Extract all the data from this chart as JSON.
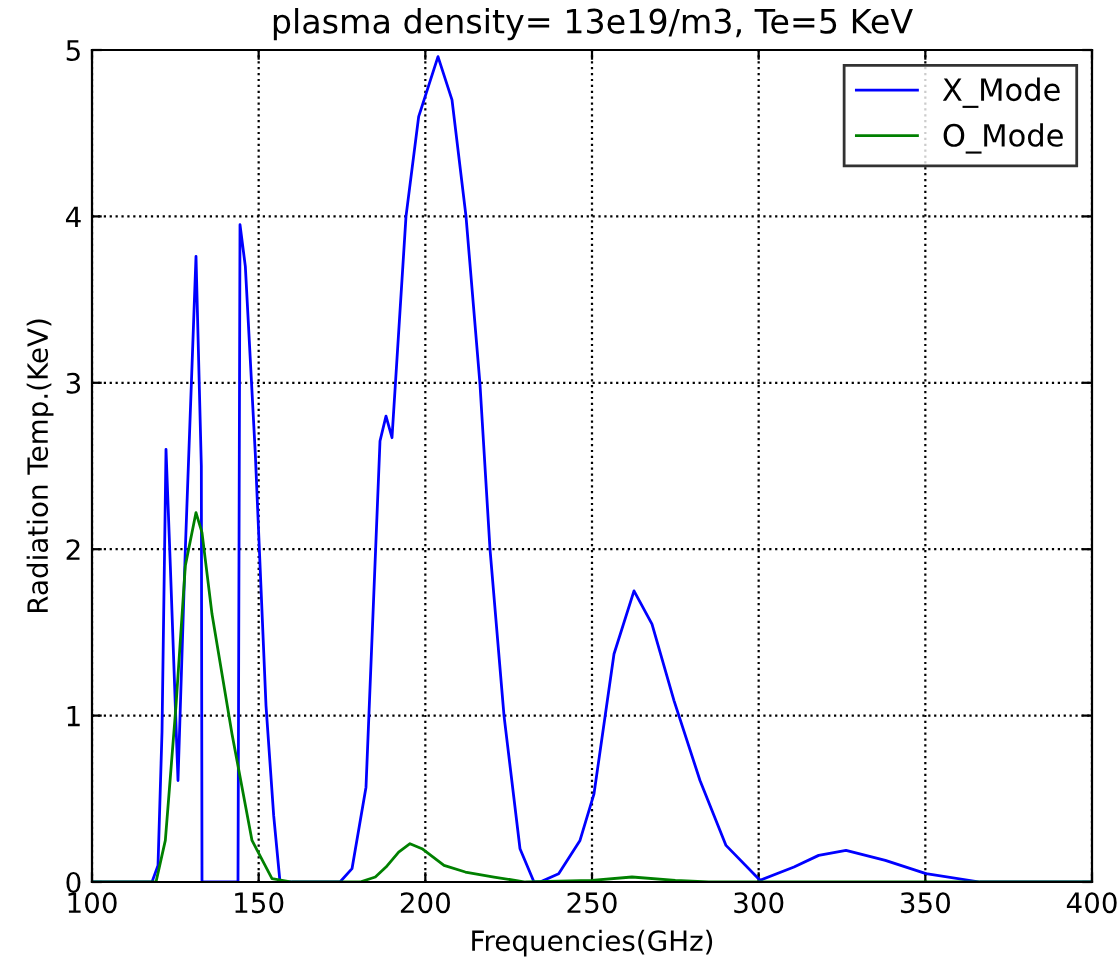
{
  "chart_data": {
    "type": "line",
    "title": "plasma density= 13e19/m3, Te=5 KeV",
    "xlabel": "Frequencies(GHz)",
    "ylabel": "Radiation Temp.(KeV)",
    "xlim": [
      100,
      400
    ],
    "ylim": [
      0,
      5
    ],
    "xticks": [
      100,
      150,
      200,
      250,
      300,
      350,
      400
    ],
    "yticks": [
      0,
      1,
      2,
      3,
      4,
      5
    ],
    "grid": true,
    "legend": "top right",
    "line_style": "solid",
    "marker": "none",
    "series": [
      {
        "name": "X_Mode",
        "color": "#0000ff",
        "x": [
          100,
          118,
          119.8,
          121,
          122.2,
          123.5,
          125.8,
          128,
          131.2,
          132.8,
          133,
          143.8,
          144.4,
          146,
          149,
          152.2,
          154.5,
          156.4,
          170,
          174.4,
          178,
          182.2,
          186.4,
          188.2,
          190,
          194.2,
          198,
          203.8,
          208,
          212.2,
          216.4,
          219.4,
          223.6,
          228.4,
          232.6,
          234.4,
          240,
          246.4,
          250.6,
          256.6,
          262.6,
          268,
          274.6,
          282.4,
          290.2,
          300.4,
          310.6,
          318,
          326.2,
          338,
          350.2,
          366.4,
          400
        ],
        "values": [
          0,
          0,
          0.1,
          0.9,
          2.6,
          1.9,
          0.61,
          2.0,
          3.76,
          2.5,
          0,
          0,
          3.95,
          3.7,
          2.57,
          1.06,
          0.4,
          0,
          0,
          0,
          0.08,
          0.57,
          2.65,
          2.8,
          2.67,
          4.0,
          4.6,
          4.96,
          4.7,
          4.0,
          2.99,
          2.0,
          1.0,
          0.2,
          0,
          0,
          0.05,
          0.25,
          0.53,
          1.37,
          1.75,
          1.55,
          1.09,
          0.61,
          0.22,
          0.01,
          0.09,
          0.16,
          0.19,
          0.13,
          0.05,
          0,
          0
        ]
      },
      {
        "name": "O_Mode",
        "color": "#008000",
        "x": [
          100,
          119.2,
          122,
          125.2,
          128,
          131.2,
          133,
          136,
          142,
          148,
          154,
          160,
          180.4,
          185,
          188.2,
          192,
          195.4,
          199,
          205.6,
          212,
          220.6,
          230,
          250,
          262,
          275,
          285,
          400
        ],
        "values": [
          0,
          0,
          0.25,
          1.06,
          1.9,
          2.22,
          2.1,
          1.61,
          0.89,
          0.25,
          0.02,
          0,
          0,
          0.03,
          0.09,
          0.18,
          0.23,
          0.2,
          0.1,
          0.06,
          0.03,
          0,
          0.01,
          0.03,
          0.01,
          0,
          0
        ]
      }
    ]
  }
}
